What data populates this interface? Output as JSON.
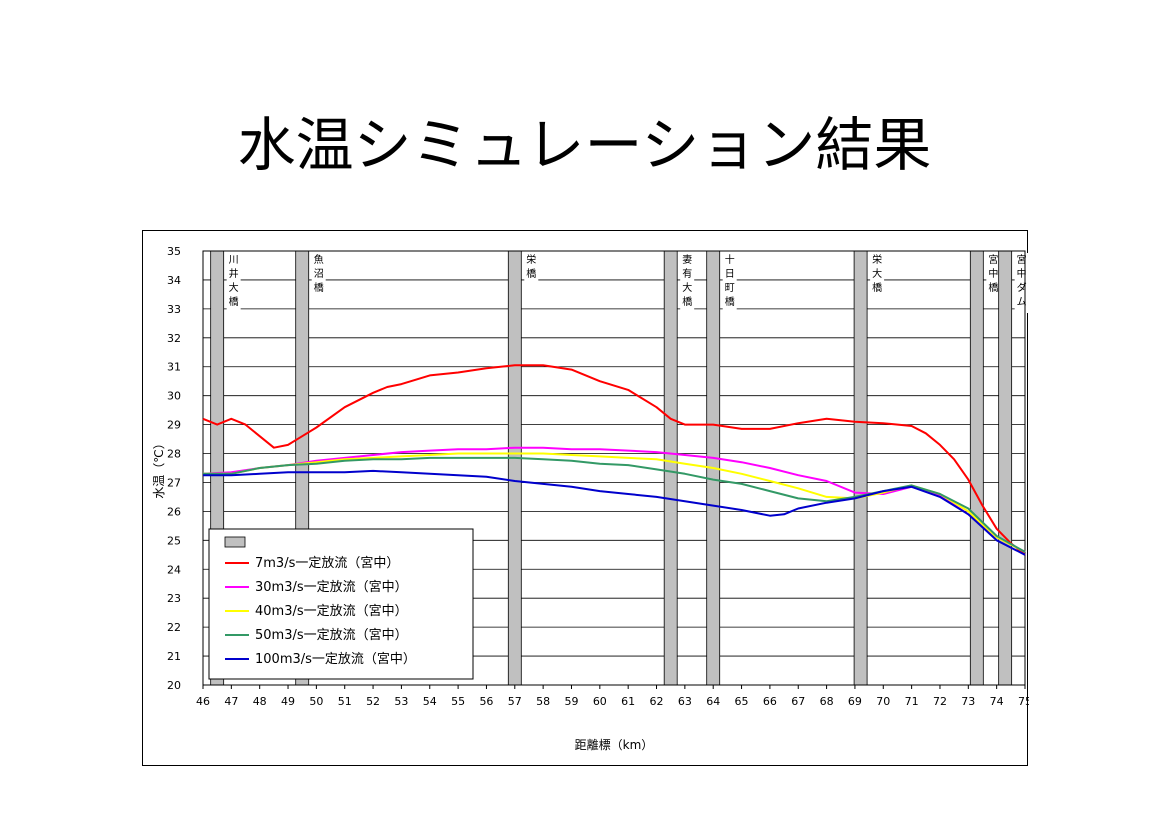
{
  "page": {
    "title": "水温シミュレーション結果"
  },
  "chart_data": {
    "type": "line",
    "title": "",
    "xlabel": "距離標（km）",
    "ylabel": "水温（℃）",
    "xlim": [
      46,
      75
    ],
    "ylim": [
      20,
      35
    ],
    "x_ticks": [
      46,
      47,
      48,
      49,
      50,
      51,
      52,
      53,
      54,
      55,
      56,
      57,
      58,
      59,
      60,
      61,
      62,
      63,
      64,
      65,
      66,
      67,
      68,
      69,
      70,
      71,
      72,
      73,
      74,
      75
    ],
    "y_ticks": [
      20,
      21,
      22,
      23,
      24,
      25,
      26,
      27,
      28,
      29,
      30,
      31,
      32,
      33,
      34,
      35
    ],
    "grid": "horizontal",
    "bridges": [
      {
        "name": "川井大橋",
        "x": 46.5
      },
      {
        "name": "魚沼橋",
        "x": 49.5
      },
      {
        "name": "栄橋",
        "x": 57.0
      },
      {
        "name": "妻有大橋",
        "x": 62.5
      },
      {
        "name": "十日町橋",
        "x": 64.0
      },
      {
        "name": "栄大橋",
        "x": 69.2
      },
      {
        "name": "宮中橋",
        "x": 73.3
      },
      {
        "name": "宮中ダム",
        "x": 74.3
      }
    ],
    "bridge_band_series": {
      "name": "",
      "color": "#c0c0c0"
    },
    "series": [
      {
        "name": "7m3/s一定放流（宮中）",
        "color": "#ff0000",
        "x": [
          46,
          46.5,
          47,
          47.5,
          48,
          48.5,
          49,
          49.5,
          50,
          51,
          52,
          52.5,
          53,
          54,
          55,
          56,
          57,
          58,
          59,
          60,
          61,
          62,
          62.5,
          63,
          64,
          65,
          66,
          67,
          68,
          69,
          70,
          71,
          71.5,
          72,
          72.5,
          73,
          73.5,
          74,
          74.5,
          75
        ],
        "y": [
          29.2,
          29.0,
          29.2,
          29.0,
          28.6,
          28.2,
          28.3,
          28.6,
          28.9,
          29.6,
          30.1,
          30.3,
          30.4,
          30.7,
          30.8,
          30.95,
          31.05,
          31.05,
          30.9,
          30.5,
          30.2,
          29.6,
          29.2,
          29.0,
          29.0,
          28.85,
          28.85,
          29.05,
          29.2,
          29.1,
          29.05,
          28.95,
          28.7,
          28.3,
          27.8,
          27.1,
          26.2,
          25.4,
          24.9,
          24.5
        ]
      },
      {
        "name": "30m3/s一定放流（宮中）",
        "color": "#ff00ff",
        "x": [
          46,
          47,
          48,
          49,
          50,
          51,
          52,
          53,
          54,
          55,
          56,
          57,
          58,
          59,
          60,
          61,
          62,
          63,
          64,
          65,
          66,
          67,
          68,
          69,
          70,
          71,
          72,
          73,
          74,
          75
        ],
        "y": [
          27.3,
          27.35,
          27.5,
          27.6,
          27.75,
          27.85,
          27.95,
          28.05,
          28.1,
          28.15,
          28.15,
          28.2,
          28.2,
          28.15,
          28.15,
          28.1,
          28.05,
          27.95,
          27.85,
          27.7,
          27.5,
          27.25,
          27.05,
          26.65,
          26.6,
          26.85,
          26.55,
          25.9,
          25.1,
          24.6
        ]
      },
      {
        "name": "40m3/s一定放流（宮中）",
        "color": "#ffff00",
        "x": [
          46,
          47,
          48,
          49,
          50,
          51,
          52,
          53,
          54,
          55,
          56,
          57,
          58,
          59,
          60,
          61,
          62,
          63,
          64,
          65,
          66,
          67,
          68,
          69,
          70,
          71,
          72,
          73,
          74,
          75
        ],
        "y": [
          27.3,
          27.3,
          27.5,
          27.6,
          27.7,
          27.8,
          27.85,
          27.9,
          27.95,
          28.0,
          28.0,
          28.0,
          28.0,
          27.95,
          27.9,
          27.85,
          27.8,
          27.65,
          27.5,
          27.3,
          27.05,
          26.8,
          26.5,
          26.45,
          26.65,
          26.9,
          26.6,
          26.0,
          25.1,
          24.6
        ]
      },
      {
        "name": "50m3/s一定放流（宮中）",
        "color": "#339966",
        "x": [
          46,
          47,
          48,
          49,
          50,
          51,
          52,
          53,
          54,
          55,
          56,
          57,
          58,
          59,
          60,
          61,
          62,
          63,
          64,
          65,
          66,
          67,
          68,
          69,
          70,
          71,
          72,
          73,
          74,
          75
        ],
        "y": [
          27.3,
          27.3,
          27.5,
          27.6,
          27.65,
          27.75,
          27.8,
          27.8,
          27.85,
          27.85,
          27.85,
          27.85,
          27.8,
          27.75,
          27.65,
          27.6,
          27.45,
          27.3,
          27.1,
          26.95,
          26.7,
          26.45,
          26.35,
          26.5,
          26.7,
          26.9,
          26.6,
          26.1,
          25.15,
          24.6
        ]
      },
      {
        "name": "100m3/s一定放流（宮中）",
        "color": "#0000cc",
        "x": [
          46,
          47,
          48,
          49,
          50,
          51,
          52,
          53,
          54,
          55,
          56,
          57,
          58,
          59,
          60,
          61,
          62,
          63,
          64,
          65,
          66,
          66.5,
          67,
          68,
          69,
          70,
          71,
          72,
          73,
          74,
          75
        ],
        "y": [
          27.25,
          27.25,
          27.3,
          27.35,
          27.35,
          27.35,
          27.4,
          27.35,
          27.3,
          27.25,
          27.2,
          27.05,
          26.95,
          26.85,
          26.7,
          26.6,
          26.5,
          26.35,
          26.2,
          26.05,
          25.85,
          25.9,
          26.1,
          26.3,
          26.45,
          26.7,
          26.85,
          26.5,
          25.9,
          25.0,
          24.5
        ]
      }
    ],
    "legend": "bottom-left inset"
  }
}
